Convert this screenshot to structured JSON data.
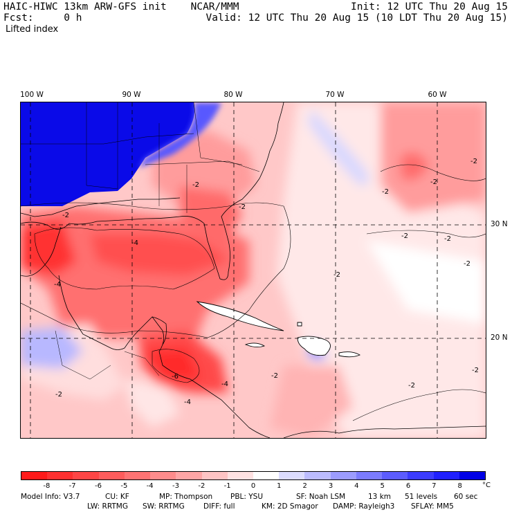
{
  "header": {
    "title": "HAIC-HIWC 13km ARW-GFS init    NCAR/MMM",
    "fcst": "Fcst:     0 h",
    "field": "Lifted index",
    "init": "Init: 12 UTC Thu 20 Aug 15",
    "valid": "Valid: 12 UTC Thu 20 Aug 15 (10 LDT Thu 20 Aug 15)"
  },
  "map": {
    "lon_labels": [
      "100 W",
      "90 W",
      "80 W",
      "70 W",
      "60 W"
    ],
    "lat_labels": [
      "30 N",
      "20 N"
    ],
    "contour_labels": [
      "-2",
      "-4",
      "-6"
    ]
  },
  "colorbar": {
    "ticks": [
      "-8",
      "-7",
      "-6",
      "-5",
      "-4",
      "-3",
      "-2",
      "-1",
      "0",
      "1",
      "2",
      "3",
      "4",
      "5",
      "6",
      "7",
      "8"
    ],
    "unit": "°C",
    "colors": [
      "#ff1a1a",
      "#ff3030",
      "#ff4545",
      "#ff5c5c",
      "#ff7373",
      "#ff8c8c",
      "#ffa6a6",
      "#ffc4c4",
      "#ffe2e2",
      "#ffffff",
      "#dcdcff",
      "#bcbcff",
      "#9c9cff",
      "#7c7cff",
      "#5c5cff",
      "#3c3cff",
      "#2020ff",
      "#0000e6"
    ]
  },
  "footer": {
    "model_info": "Model Info: V3.7",
    "cu": "CU: KF",
    "mp": "MP: Thompson",
    "pbl": "PBL: YSU",
    "sf": "SF: Noah LSM",
    "res": "13 km",
    "levels": "51 levels",
    "dt": "60 sec",
    "lw": "LW: RRTMG",
    "sw": "SW: RRTMG",
    "diff": "DIFF: full",
    "km": "KM: 2D Smagor",
    "damp": "DAMP: Rayleigh3",
    "sflay": "SFLAY: MM5"
  }
}
